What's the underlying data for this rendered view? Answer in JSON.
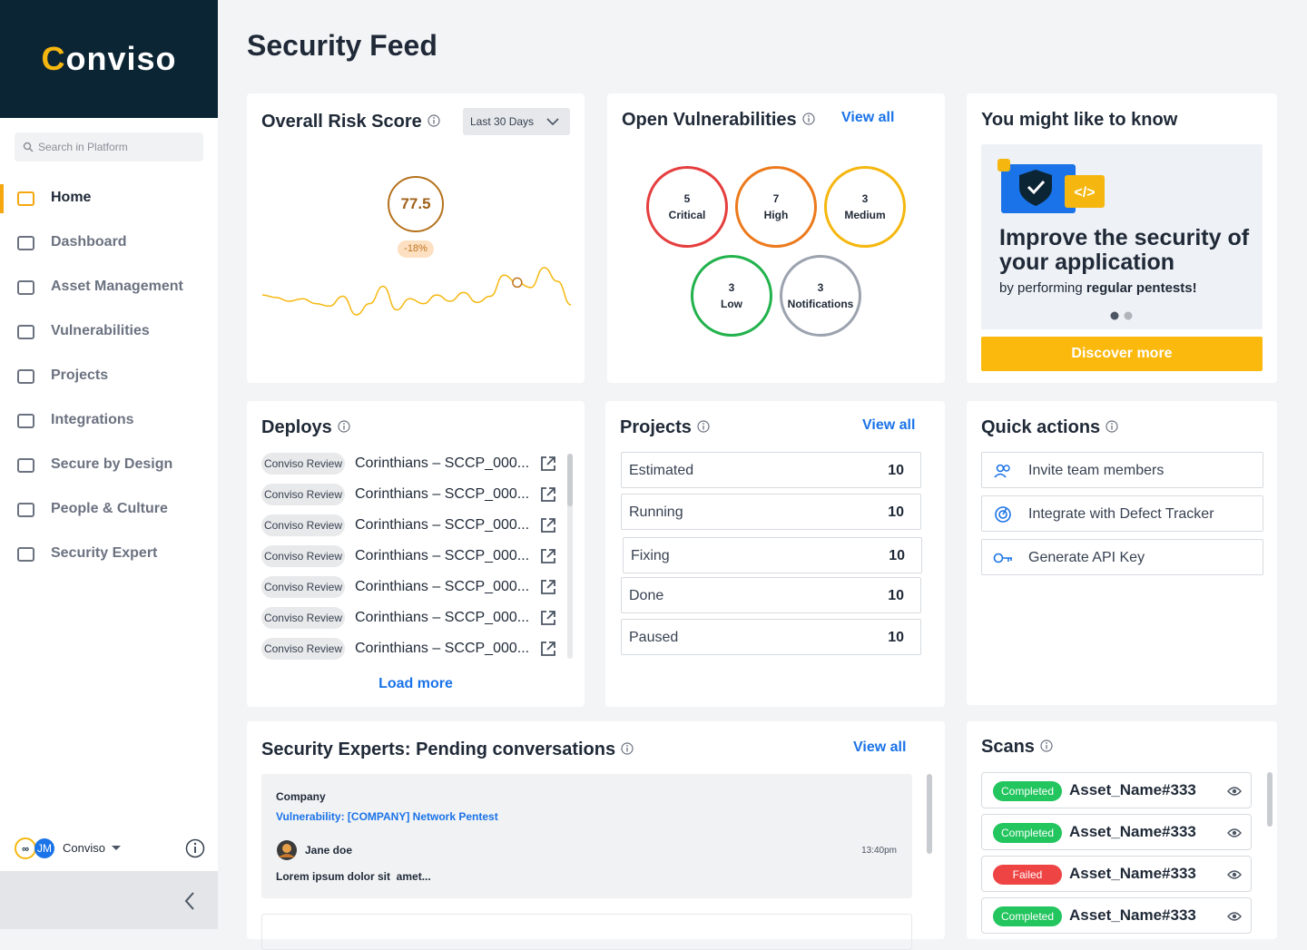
{
  "brand": "Conviso",
  "search_placeholder": "Search in Platform",
  "nav": [
    "Home",
    "Dashboard",
    "Asset Management",
    "Vulnerabilities",
    "Projects",
    "Integrations",
    "Secure by Design",
    "People & Culture",
    "Security Expert"
  ],
  "user": {
    "initials": "JM",
    "name": "Conviso"
  },
  "page_title": "Security Feed",
  "risk": {
    "title": "Overall Risk Score",
    "period": "Last 30 Days",
    "score": 77.5,
    "change": "-18%",
    "trend": [
      20,
      18,
      15,
      17,
      13,
      11,
      19,
      4,
      13,
      27,
      8,
      17,
      13,
      20,
      15,
      22,
      14,
      19,
      36,
      30,
      26,
      42,
      31,
      12
    ],
    "highlight_index": 19
  },
  "vulns": {
    "title": "Open Vulnerabilities",
    "view_all": "View all",
    "items": [
      {
        "count": 5,
        "label": "Critical",
        "color": "#e53e3e"
      },
      {
        "count": 7,
        "label": "High",
        "color": "#ec7a1c"
      },
      {
        "count": 3,
        "label": "Medium",
        "color": "#f5b70f"
      },
      {
        "count": 3,
        "label": "Low",
        "color": "#22b24c"
      },
      {
        "count": 3,
        "label": "Notifications",
        "color": "#9ca3af"
      }
    ]
  },
  "tip": {
    "title": "You might like to know",
    "headline": "Improve the security of your application",
    "text_prefix": "by performing",
    "text_bold": "regular pentests!",
    "button": "Discover more"
  },
  "deploys": {
    "title": "Deploys",
    "items": [
      {
        "tag": "Conviso Review",
        "name": "Corinthians – SCCP_000..."
      },
      {
        "tag": "Conviso Review",
        "name": "Corinthians – SCCP_000..."
      },
      {
        "tag": "Conviso Review",
        "name": "Corinthians – SCCP_000..."
      },
      {
        "tag": "Conviso Review",
        "name": "Corinthians – SCCP_000..."
      },
      {
        "tag": "Conviso Review",
        "name": "Corinthians – SCCP_000..."
      },
      {
        "tag": "Conviso Review",
        "name": "Corinthians – SCCP_000..."
      },
      {
        "tag": "Conviso Review",
        "name": "Corinthians – SCCP_000..."
      }
    ],
    "load_more": "Load more"
  },
  "projects": {
    "title": "Projects",
    "view_all": "View all",
    "rows": [
      {
        "label": "Estimated",
        "count": 10
      },
      {
        "label": "Running",
        "count": 10
      },
      {
        "label": "Fixing",
        "count": 10
      },
      {
        "label": "Done",
        "count": 10
      },
      {
        "label": "Paused",
        "count": 10
      }
    ]
  },
  "quick_actions": {
    "title": "Quick actions",
    "items": [
      "Invite team members",
      "Integrate with Defect Tracker",
      "Generate API Key"
    ]
  },
  "conversations": {
    "title": "Security Experts: Pending conversations",
    "view_all": "View all",
    "items": [
      {
        "company": "Company",
        "vulnerability": "Vulnerability: [COMPANY] Network Pentest",
        "author": "Jane doe",
        "time": "13:40pm",
        "message": "Lorem ipsum dolor sit  amet..."
      }
    ]
  },
  "scans": {
    "title": "Scans",
    "items": [
      {
        "status": "Completed",
        "asset": "Asset_Name#333"
      },
      {
        "status": "Completed",
        "asset": "Asset_Name#333"
      },
      {
        "status": "Failed",
        "asset": "Asset_Name#333"
      },
      {
        "status": "Completed",
        "asset": "Asset_Name#333"
      }
    ]
  }
}
